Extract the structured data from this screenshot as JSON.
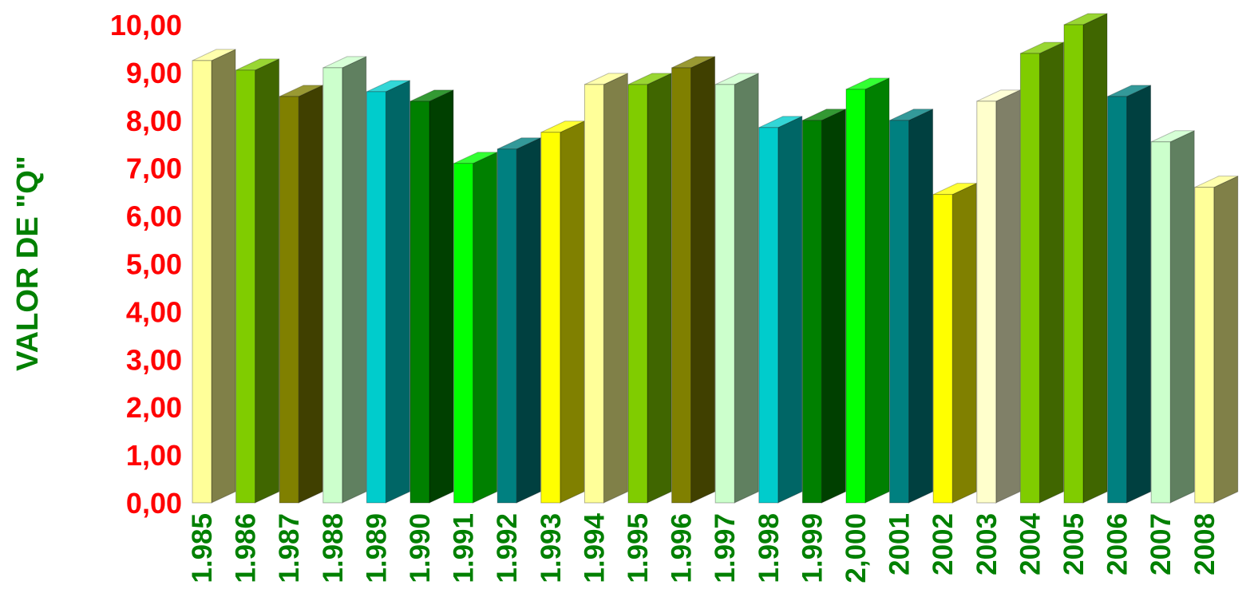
{
  "chart_data": {
    "type": "bar",
    "title": "",
    "xlabel": "",
    "ylabel": "VALOR DE \"Q\"",
    "ylim": [
      0,
      10
    ],
    "grid": false,
    "legend": "none",
    "y_ticks": [
      "0,00",
      "1,00",
      "2,00",
      "3,00",
      "4,00",
      "5,00",
      "6,00",
      "7,00",
      "8,00",
      "9,00",
      "10,00"
    ],
    "categories": [
      "1.985",
      "1.986",
      "1.987",
      "1.988",
      "1.989",
      "1.990",
      "1.991",
      "1.992",
      "1.993",
      "1.994",
      "1.995",
      "1.996",
      "1.997",
      "1.998",
      "1.999",
      "2,000",
      "2001",
      "2002",
      "2003",
      "2004",
      "2005",
      "2006",
      "2007",
      "2008"
    ],
    "values": [
      9.25,
      9.05,
      8.5,
      9.1,
      8.6,
      8.4,
      7.1,
      7.4,
      7.75,
      8.75,
      8.75,
      9.1,
      8.75,
      7.85,
      8.0,
      8.65,
      8.0,
      6.45,
      8.4,
      9.4,
      10.0,
      8.5,
      7.55,
      6.6
    ],
    "colors": {
      "ytick_text": "#ff0000",
      "xtick_text": "#008000",
      "ylabel_text": "#008000",
      "bars": [
        {
          "front": "#ffff99",
          "side": "#808048"
        },
        {
          "front": "#80cc00",
          "side": "#406600"
        },
        {
          "front": "#808000",
          "side": "#404000"
        },
        {
          "front": "#ccffcc",
          "side": "#608060"
        },
        {
          "front": "#00cccc",
          "side": "#006666"
        },
        {
          "front": "#008000",
          "side": "#004000"
        },
        {
          "front": "#00ff00",
          "side": "#008000"
        },
        {
          "front": "#008080",
          "side": "#004040"
        },
        {
          "front": "#ffff00",
          "side": "#808000"
        },
        {
          "front": "#ffff99",
          "side": "#808048"
        },
        {
          "front": "#80cc00",
          "side": "#406600"
        },
        {
          "front": "#808000",
          "side": "#404000"
        },
        {
          "front": "#ccffcc",
          "side": "#608060"
        },
        {
          "front": "#00cccc",
          "side": "#006666"
        },
        {
          "front": "#008000",
          "side": "#004000"
        },
        {
          "front": "#00ff00",
          "side": "#008000"
        },
        {
          "front": "#008080",
          "side": "#004040"
        },
        {
          "front": "#ffff00",
          "side": "#808000"
        },
        {
          "front": "#ffffcc",
          "side": "#808068"
        },
        {
          "front": "#80cc00",
          "side": "#406600"
        },
        {
          "front": "#80cc00",
          "side": "#406600"
        },
        {
          "front": "#008080",
          "side": "#004040"
        },
        {
          "front": "#ccffcc",
          "side": "#608060"
        },
        {
          "front": "#ffff99",
          "side": "#808048"
        }
      ]
    }
  }
}
